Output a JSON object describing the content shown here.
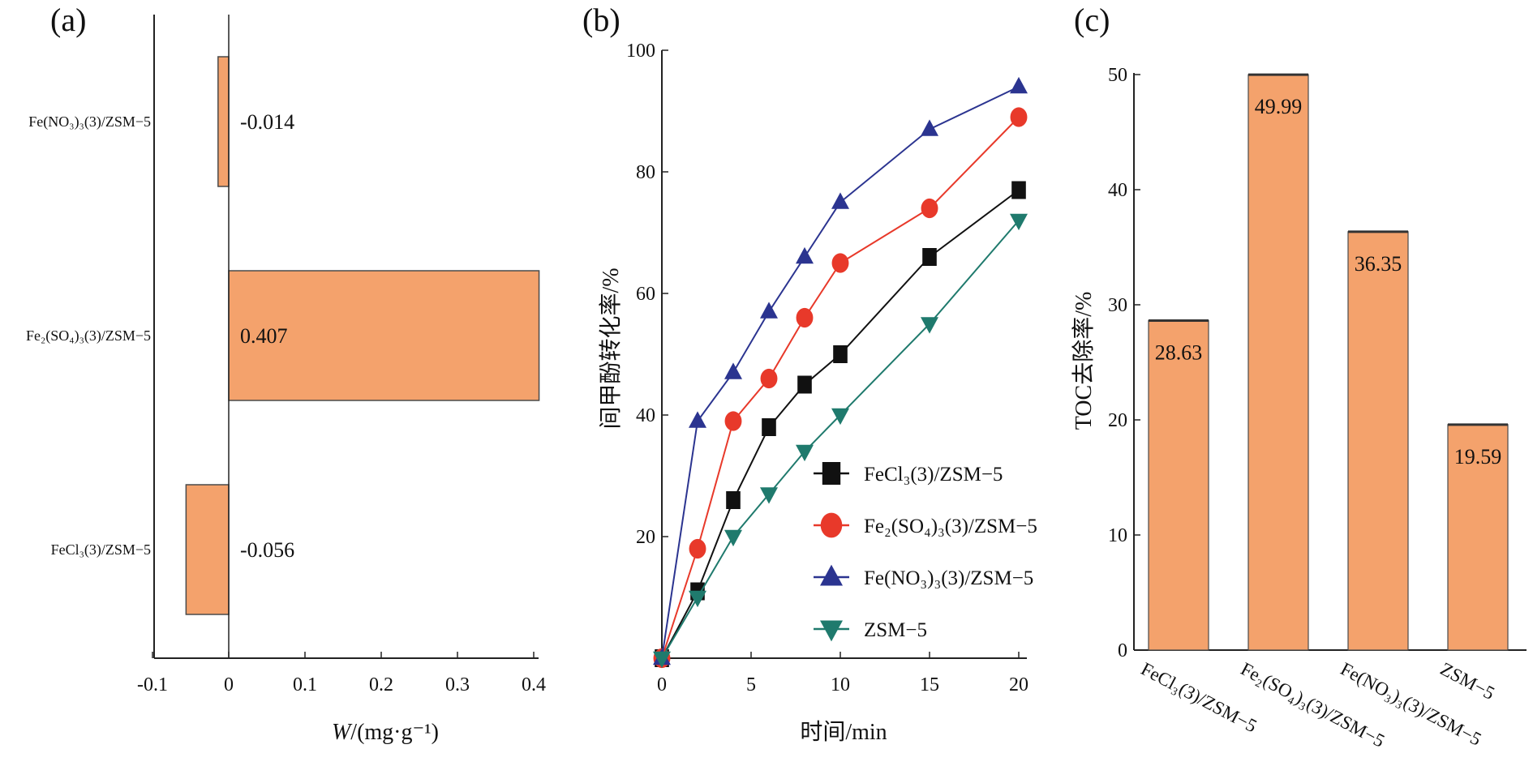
{
  "panel_labels": {
    "a": "(a)",
    "b": "(b)",
    "c": "(c)"
  },
  "chart_data": [
    {
      "panel": "a",
      "type": "bar",
      "orientation": "horizontal",
      "categories": [
        "Fe(NO₃)₃(3)/ZSM−5",
        "Fe₂(SO₄)₃(3)/ZSM−5",
        "FeCl₃(3)/ZSM−5"
      ],
      "values": [
        -0.014,
        0.407,
        -0.056
      ],
      "value_labels": [
        "-0.014",
        "0.407",
        "-0.056"
      ],
      "xlabel": "W/(mg·g⁻¹)",
      "xlabel_italic": "W",
      "xlabel_rest": "/(mg·g⁻¹)",
      "xlim": [
        -0.1,
        0.4
      ],
      "xticks": [
        "-0.1",
        "0",
        "0.1",
        "0.2",
        "0.3",
        "0.4"
      ],
      "bar_color": "#F4A26C"
    },
    {
      "panel": "b",
      "type": "line",
      "xlabel": "时间/min",
      "ylabel": "间甲酚转化率/%",
      "xlim": [
        0,
        20
      ],
      "ylim": [
        0,
        100
      ],
      "xticks": [
        "0",
        "5",
        "10",
        "15",
        "20"
      ],
      "yticks": [
        "20",
        "40",
        "60",
        "80",
        "100"
      ],
      "x": [
        0,
        2,
        4,
        6,
        8,
        10,
        15,
        20
      ],
      "legend_position": "lower-right",
      "series": [
        {
          "name": "FeCl₃(3)/ZSM−5",
          "color": "#111111",
          "marker": "square",
          "values": [
            0,
            11,
            26,
            38,
            45,
            50,
            66,
            77
          ]
        },
        {
          "name": "Fe₂(SO₄)₃(3)/ZSM−5",
          "color": "#E8392A",
          "marker": "circle",
          "values": [
            0,
            18,
            39,
            46,
            56,
            65,
            74,
            89
          ]
        },
        {
          "name": "Fe(NO₃)₃(3)/ZSM−5",
          "color": "#2B3490",
          "marker": "triangle-up",
          "values": [
            0,
            39,
            47,
            57,
            66,
            75,
            87,
            94
          ]
        },
        {
          "name": "ZSM−5",
          "color": "#1F7A6D",
          "marker": "triangle-down",
          "values": [
            0,
            10,
            20,
            27,
            34,
            40,
            55,
            72
          ]
        }
      ]
    },
    {
      "panel": "c",
      "type": "bar",
      "categories": [
        "FeCl₃(3)/ZSM−5",
        "Fe₂(SO₄)₃(3)/ZSM−5",
        "Fe(NO₃)₃(3)/ZSM−5",
        "ZSM−5"
      ],
      "values": [
        28.63,
        49.99,
        36.35,
        19.59
      ],
      "value_labels": [
        "28.63",
        "49.99",
        "36.35",
        "19.59"
      ],
      "ylabel": "TOC去除率/%",
      "ylim": [
        0,
        50
      ],
      "yticks": [
        "0",
        "10",
        "20",
        "30",
        "40",
        "50"
      ],
      "bar_color": "#F4A26C"
    }
  ]
}
